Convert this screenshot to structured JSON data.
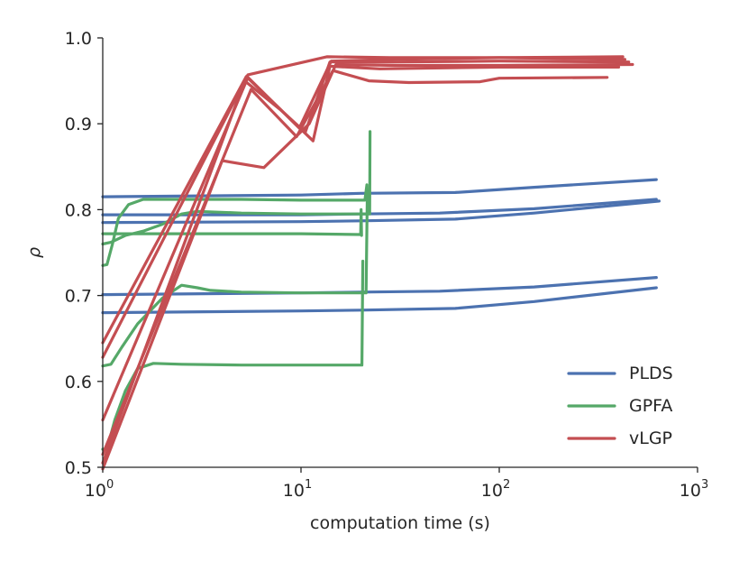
{
  "chart_data": {
    "type": "line",
    "title": "",
    "xlabel": "computation time (s)",
    "ylabel": "ρ",
    "xscale": "log",
    "xlim": [
      1,
      1000
    ],
    "ylim": [
      0.5,
      1.0
    ],
    "xticks": [
      1,
      10,
      100,
      1000
    ],
    "xtick_labels": [
      {
        "base": "10",
        "exp": "0"
      },
      {
        "base": "10",
        "exp": "1"
      },
      {
        "base": "10",
        "exp": "2"
      },
      {
        "base": "10",
        "exp": "3"
      }
    ],
    "yticks": [
      0.5,
      0.6,
      0.7,
      0.8,
      0.9,
      1.0
    ],
    "ytick_labels": [
      "0.5",
      "0.6",
      "0.7",
      "0.8",
      "0.9",
      "1.0"
    ],
    "grid": false,
    "legend_position": "bottom-right",
    "legend": [
      {
        "name": "PLDS",
        "color": "#4c72b0"
      },
      {
        "name": "GPFA",
        "color": "#55a868"
      },
      {
        "name": "vLGP",
        "color": "#c44e52"
      }
    ],
    "series": [
      {
        "name": "PLDS",
        "color": "#4c72b0",
        "points": [
          [
            1.0,
            0.815
          ],
          [
            10,
            0.817
          ],
          [
            20,
            0.819
          ],
          [
            60,
            0.82
          ],
          [
            150,
            0.826
          ],
          [
            620,
            0.835
          ]
        ]
      },
      {
        "name": "PLDS",
        "color": "#4c72b0",
        "points": [
          [
            1.0,
            0.794
          ],
          [
            10,
            0.794
          ],
          [
            20,
            0.795
          ],
          [
            50,
            0.796
          ],
          [
            150,
            0.801
          ],
          [
            620,
            0.812
          ]
        ]
      },
      {
        "name": "PLDS",
        "color": "#4c72b0",
        "points": [
          [
            1.0,
            0.785
          ],
          [
            10,
            0.786
          ],
          [
            20,
            0.787
          ],
          [
            60,
            0.789
          ],
          [
            150,
            0.796
          ],
          [
            640,
            0.81
          ]
        ]
      },
      {
        "name": "PLDS",
        "color": "#4c72b0",
        "points": [
          [
            1.0,
            0.701
          ],
          [
            10,
            0.703
          ],
          [
            20,
            0.704
          ],
          [
            50,
            0.705
          ],
          [
            150,
            0.71
          ],
          [
            620,
            0.721
          ]
        ]
      },
      {
        "name": "PLDS",
        "color": "#4c72b0",
        "points": [
          [
            1.0,
            0.68
          ],
          [
            10,
            0.682
          ],
          [
            20,
            0.683
          ],
          [
            60,
            0.685
          ],
          [
            150,
            0.693
          ],
          [
            620,
            0.709
          ]
        ]
      },
      {
        "name": "GPFA",
        "color": "#55a868",
        "points": [
          [
            1.0,
            0.735
          ],
          [
            1.05,
            0.736
          ],
          [
            1.12,
            0.76
          ],
          [
            1.2,
            0.79
          ],
          [
            1.35,
            0.806
          ],
          [
            1.6,
            0.812
          ],
          [
            2.0,
            0.812
          ],
          [
            5,
            0.812
          ],
          [
            10,
            0.811
          ],
          [
            21,
            0.811
          ],
          [
            21.5,
            0.829
          ],
          [
            21.7,
            0.811
          ]
        ]
      },
      {
        "name": "GPFA",
        "color": "#55a868",
        "points": [
          [
            1.0,
            0.76
          ],
          [
            1.1,
            0.762
          ],
          [
            1.3,
            0.77
          ],
          [
            1.6,
            0.775
          ],
          [
            2.0,
            0.783
          ],
          [
            2.5,
            0.795
          ],
          [
            3.0,
            0.798
          ],
          [
            5,
            0.796
          ],
          [
            10,
            0.795
          ],
          [
            22.2,
            0.795
          ],
          [
            22.3,
            0.891
          ]
        ]
      },
      {
        "name": "GPFA",
        "color": "#55a868",
        "points": [
          [
            1.0,
            0.772
          ],
          [
            2,
            0.772
          ],
          [
            5,
            0.772
          ],
          [
            10,
            0.772
          ],
          [
            20,
            0.771
          ],
          [
            20.1,
            0.8
          ],
          [
            20.2,
            0.77
          ]
        ]
      },
      {
        "name": "GPFA",
        "color": "#55a868",
        "points": [
          [
            1.0,
            0.618
          ],
          [
            1.1,
            0.62
          ],
          [
            1.25,
            0.64
          ],
          [
            1.5,
            0.667
          ],
          [
            2.0,
            0.697
          ],
          [
            2.5,
            0.712
          ],
          [
            3.0,
            0.709
          ],
          [
            3.5,
            0.706
          ],
          [
            5,
            0.704
          ],
          [
            10,
            0.703
          ],
          [
            21.3,
            0.703
          ],
          [
            21.6,
            0.82
          ]
        ]
      },
      {
        "name": "GPFA",
        "color": "#55a868",
        "points": [
          [
            1.0,
            0.521
          ],
          [
            1.05,
            0.521
          ],
          [
            1.15,
            0.555
          ],
          [
            1.3,
            0.589
          ],
          [
            1.5,
            0.615
          ],
          [
            1.8,
            0.621
          ],
          [
            2.5,
            0.62
          ],
          [
            5,
            0.619
          ],
          [
            10,
            0.619
          ],
          [
            20.3,
            0.619
          ],
          [
            20.5,
            0.74
          ]
        ]
      },
      {
        "name": "vLGP",
        "color": "#c44e52",
        "points": [
          [
            1.0,
            0.628
          ],
          [
            5.4,
            0.957
          ],
          [
            13.5,
            0.978
          ],
          [
            28,
            0.977
          ],
          [
            100,
            0.977
          ],
          [
            430,
            0.975
          ]
        ]
      },
      {
        "name": "vLGP",
        "color": "#c44e52",
        "points": [
          [
            1.0,
            0.555
          ],
          [
            5.4,
            0.954
          ],
          [
            9.8,
            0.895
          ],
          [
            14.2,
            0.973
          ],
          [
            30,
            0.975
          ],
          [
            100,
            0.977
          ],
          [
            420,
            0.978
          ]
        ]
      },
      {
        "name": "vLGP",
        "color": "#c44e52",
        "points": [
          [
            1.0,
            0.515
          ],
          [
            5.6,
            0.94
          ],
          [
            9.5,
            0.885
          ],
          [
            14.5,
            0.962
          ],
          [
            22,
            0.95
          ],
          [
            35,
            0.948
          ],
          [
            80,
            0.949
          ],
          [
            100,
            0.953
          ],
          [
            350,
            0.954
          ]
        ]
      },
      {
        "name": "vLGP",
        "color": "#c44e52",
        "points": [
          [
            1.0,
            0.498
          ],
          [
            4.0,
            0.857
          ],
          [
            6.5,
            0.849
          ],
          [
            11,
            0.9
          ],
          [
            15,
            0.969
          ],
          [
            30,
            0.968
          ],
          [
            100,
            0.968
          ],
          [
            470,
            0.969
          ]
        ]
      },
      {
        "name": "vLGP",
        "color": "#c44e52",
        "points": [
          [
            1.0,
            0.645
          ],
          [
            5.3,
            0.955
          ],
          [
            11.5,
            0.88
          ],
          [
            14.0,
            0.967
          ],
          [
            25,
            0.964
          ],
          [
            100,
            0.966
          ],
          [
            400,
            0.966
          ]
        ]
      },
      {
        "name": "vLGP",
        "color": "#c44e52",
        "points": [
          [
            1.0,
            0.505
          ],
          [
            5.2,
            0.95
          ],
          [
            8.0,
            0.915
          ],
          [
            10.5,
            0.89
          ],
          [
            14.0,
            0.972
          ],
          [
            30,
            0.972
          ],
          [
            100,
            0.973
          ],
          [
            450,
            0.972
          ]
        ]
      }
    ]
  }
}
